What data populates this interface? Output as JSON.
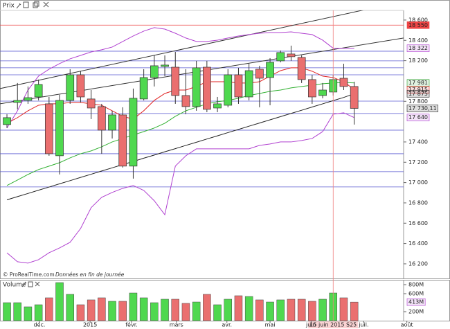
{
  "chart_data": [
    {
      "type": "candlestick",
      "title": "Prix",
      "watermark": [
        "© ProRealTime.com",
        "Données en fin de journée"
      ],
      "x": [
        0,
        1,
        2,
        3,
        4,
        5,
        6,
        7,
        8,
        9,
        10,
        11,
        12,
        13,
        14,
        15,
        16,
        17,
        18,
        19,
        20,
        21,
        22,
        23,
        24,
        25,
        26,
        27,
        28,
        29,
        30,
        31,
        32,
        33
      ],
      "open": [
        17571,
        17789,
        17809,
        17843,
        17775,
        17264,
        17809,
        18061,
        17823,
        17748,
        17516,
        17666,
        17162,
        17823,
        18034,
        18143,
        18136,
        17857,
        17748,
        18136,
        17734,
        17761,
        18061,
        17843,
        18116,
        18034,
        18198,
        18266,
        18232,
        18014,
        17857,
        17891,
        18027,
        17946
      ],
      "high": [
        17673,
        17980,
        17946,
        18014,
        17843,
        17864,
        18116,
        18096,
        17911,
        17775,
        17707,
        17741,
        17925,
        18116,
        18252,
        18252,
        18286,
        18116,
        18198,
        18198,
        17843,
        18116,
        18130,
        18170,
        18150,
        18225,
        18300,
        18348,
        18252,
        18061,
        17980,
        18061,
        18170,
        17993
      ],
      "low": [
        17537,
        17721,
        17775,
        17809,
        17264,
        17080,
        17775,
        17789,
        17625,
        17284,
        17434,
        17148,
        17039,
        17809,
        17946,
        18048,
        17775,
        17673,
        17707,
        17693,
        17693,
        17741,
        17775,
        17809,
        17741,
        17761,
        18184,
        18198,
        17980,
        17775,
        17830,
        17857,
        17911,
        17571
      ],
      "close": [
        17639,
        17809,
        17836,
        17966,
        17284,
        17809,
        18061,
        17843,
        17734,
        17516,
        17666,
        17162,
        17830,
        18034,
        18150,
        18157,
        17857,
        17748,
        18130,
        17721,
        17775,
        18061,
        17843,
        18102,
        18027,
        18184,
        18280,
        18239,
        18014,
        17843,
        17911,
        18014,
        17946,
        17730.11
      ],
      "up_color": "#4fd84f",
      "down_color": "#ea6f6f",
      "xlim": [
        -0.66,
        42.1
      ],
      "ylim": [
        16070,
        18695
      ],
      "yticks": [
        {
          "value": 18600,
          "label": "18 600"
        },
        {
          "value": 18400,
          "label": "18 400"
        },
        {
          "value": 18200,
          "label": "18 200"
        },
        {
          "value": 17800,
          "label": "17 800"
        },
        {
          "value": 17400,
          "label": "17 400"
        },
        {
          "value": 17200,
          "label": "17 200"
        },
        {
          "value": 17000,
          "label": "17 000"
        },
        {
          "value": 16800,
          "label": "16 800"
        },
        {
          "value": 16600,
          "label": "16 600"
        },
        {
          "value": 16400,
          "label": "16 400"
        },
        {
          "value": 16200,
          "label": "16 200"
        }
      ],
      "lines": [
        {
          "color": "#b040d0",
          "values": [
            17537,
            17707,
            17911,
            18048,
            18116,
            18171,
            18218,
            18252,
            18286,
            18307,
            18334,
            18389,
            18443,
            18491,
            18525,
            18511,
            18470,
            18423,
            18389,
            18389,
            18402,
            18423,
            18443,
            18457,
            18470,
            18477,
            18477,
            18484,
            18470,
            18457,
            18402,
            18322,
            18322,
            18322
          ]
        },
        {
          "color": "#b040d0",
          "values": [
            16309,
            16221,
            16207,
            16241,
            16309,
            16357,
            16412,
            16548,
            16753,
            16855,
            16903,
            16943,
            16971,
            16923,
            16821,
            16684,
            17162,
            17264,
            17332,
            17332,
            17332,
            17332,
            17332,
            17332,
            17366,
            17380,
            17400,
            17400,
            17414,
            17434,
            17502,
            17673,
            17687,
            17640
          ]
        },
        {
          "color": "#e02020",
          "values": [
            17584,
            17639,
            17707,
            17761,
            17775,
            17775,
            17789,
            17789,
            17775,
            17761,
            17707,
            17652,
            17625,
            17707,
            17809,
            17877,
            17911,
            17911,
            17946,
            17993,
            17993,
            17993,
            17980,
            17980,
            17993,
            18048,
            18102,
            18130,
            18130,
            18096,
            18048,
            18034,
            17993,
            17915
          ]
        },
        {
          "color": "#30b030",
          "values": [
            16971,
            17025,
            17080,
            17128,
            17162,
            17196,
            17243,
            17284,
            17312,
            17352,
            17400,
            17434,
            17468,
            17502,
            17537,
            17584,
            17652,
            17707,
            17741,
            17775,
            17796,
            17809,
            17830,
            17857,
            17877,
            17898,
            17911,
            17932,
            17946,
            17959,
            17973,
            17980,
            17986,
            17981
          ]
        },
        {
          "color": "#202020",
          "values": [
            16830,
            16862,
            16893,
            16925,
            16956,
            16988,
            17019,
            17051,
            17082,
            17114,
            17145,
            17177,
            17208,
            17240,
            17271,
            17303,
            17334,
            17366,
            17397,
            17429,
            17460,
            17492,
            17523,
            17555,
            17586,
            17618,
            17649,
            17681,
            17712,
            17744,
            17775,
            17807,
            17838,
            17875
          ]
        }
      ],
      "trendlines": [
        {
          "color": "#303030",
          "x": [
            -0.66,
            37.7
          ],
          "values": [
            17925,
            18784
          ]
        },
        {
          "color": "#303030",
          "x": [
            -0.66,
            37.7
          ],
          "values": [
            17775,
            18423
          ]
        }
      ],
      "hlines": {
        "color": "#5a5ad0",
        "values": [
          18293,
          18198,
          18130,
          18061,
          17802,
          17680,
          17516,
          17284,
          17107,
          16957
        ]
      },
      "marker_lines": [
        {
          "value": 18550,
          "label": "18 550",
          "color": "#ee4444"
        }
      ],
      "value_labels": [
        {
          "value": 18322,
          "label": "18 322",
          "color": "#b040d0"
        },
        {
          "value": 17981,
          "label": "17 981",
          "color": "#30a030"
        },
        {
          "value": 17915,
          "label": "17 915",
          "color": "#e02020"
        },
        {
          "value": 17875,
          "label": "17 875",
          "color": "#202020"
        },
        {
          "value": 17730.11,
          "label": "17 730,11",
          "color": "#202020"
        },
        {
          "value": 17640,
          "label": "17 640",
          "color": "#b040d0"
        }
      ],
      "cursor": {
        "x": 31,
        "label": "15 juin 2015 S25",
        "color": "#f08080"
      }
    },
    {
      "type": "bar",
      "title": "Volume",
      "x": [
        0,
        1,
        2,
        3,
        4,
        5,
        6,
        7,
        8,
        9,
        10,
        11,
        12,
        13,
        14,
        15,
        16,
        17,
        18,
        19,
        20,
        21,
        22,
        23,
        24,
        25,
        26,
        27,
        28,
        29,
        30,
        31,
        32,
        33
      ],
      "values": [
        400,
        400,
        308,
        354,
        508,
        846,
        585,
        354,
        462,
        508,
        431,
        431,
        615,
        508,
        400,
        477,
        477,
        385,
        415,
        585,
        354,
        477,
        554,
        538,
        462,
        415,
        462,
        477,
        477,
        431,
        477,
        615,
        508,
        413
      ],
      "colors": [
        "#4fd84f",
        "#4fd84f",
        "#4fd84f",
        "#4fd84f",
        "#ea6f6f",
        "#4fd84f",
        "#4fd84f",
        "#ea6f6f",
        "#ea6f6f",
        "#ea6f6f",
        "#4fd84f",
        "#ea6f6f",
        "#4fd84f",
        "#4fd84f",
        "#4fd84f",
        "#4fd84f",
        "#ea6f6f",
        "#ea6f6f",
        "#4fd84f",
        "#ea6f6f",
        "#4fd84f",
        "#4fd84f",
        "#ea6f6f",
        "#4fd84f",
        "#ea6f6f",
        "#4fd84f",
        "#4fd84f",
        "#ea6f6f",
        "#ea6f6f",
        "#ea6f6f",
        "#4fd84f",
        "#4fd84f",
        "#ea6f6f",
        "#ea6f6f"
      ],
      "xlim": [
        -0.66,
        42.1
      ],
      "ylim": [
        0,
        892
      ],
      "yticks": [
        {
          "value": 800,
          "label": "800M"
        },
        {
          "value": 600,
          "label": "600M"
        },
        {
          "value": 200,
          "label": "200M"
        }
      ],
      "value_labels": [
        {
          "value": 413,
          "label": "413M",
          "color": "#b040d0"
        }
      ],
      "xticks": [
        {
          "value": 3.09,
          "label": "déc."
        },
        {
          "value": 7.9,
          "label": "2015"
        },
        {
          "value": 11.84,
          "label": "févr."
        },
        {
          "value": 16.1,
          "label": "mars"
        },
        {
          "value": 20.9,
          "label": "avr."
        },
        {
          "value": 25.0,
          "label": "mai"
        },
        {
          "value": 28.9,
          "label": "juin"
        },
        {
          "value": 33.9,
          "label": "juil."
        },
        {
          "value": 38.0,
          "label": "août"
        }
      ]
    }
  ]
}
